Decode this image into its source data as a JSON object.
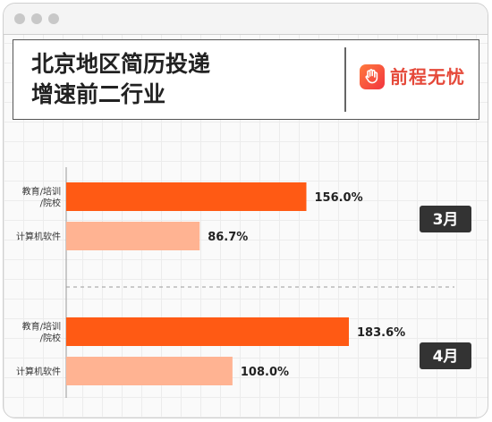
{
  "window": {
    "controls": [
      "dot",
      "dot",
      "dot"
    ]
  },
  "header": {
    "title_line1": "北京地区简历投递",
    "title_line2": "增速前二行业",
    "brand": "前程无忧",
    "brand_color": "#e5493a"
  },
  "colors": {
    "primary_bar": "#ff5a14",
    "secondary_bar": "#ffb392",
    "tag_bg": "#333333"
  },
  "chart_data": {
    "type": "bar",
    "orientation": "horizontal",
    "value_unit": "%",
    "groups": [
      {
        "name": "3月",
        "bars": [
          {
            "category": "教育/培训/院校",
            "label_lines": [
              "教育/培训",
              "/院校"
            ],
            "value": 156.0,
            "display": "156.0%"
          },
          {
            "category": "计算机软件",
            "label_lines": [
              "计算机软件"
            ],
            "value": 86.7,
            "display": "86.7%"
          }
        ]
      },
      {
        "name": "4月",
        "bars": [
          {
            "category": "教育/培训/院校",
            "label_lines": [
              "教育/培训",
              "/院校"
            ],
            "value": 183.6,
            "display": "183.6%"
          },
          {
            "category": "计算机软件",
            "label_lines": [
              "计算机软件"
            ],
            "value": 108.0,
            "display": "108.0%"
          }
        ]
      }
    ],
    "grid": true,
    "legend": "none"
  }
}
